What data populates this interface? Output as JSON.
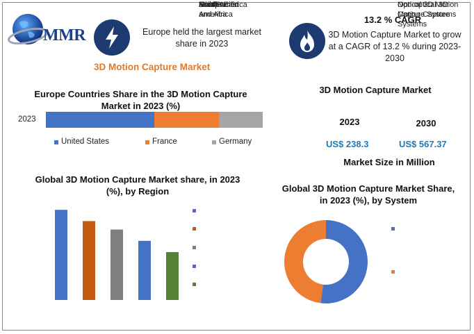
{
  "logo": {
    "text": "MMR"
  },
  "highlights": {
    "left_text": "Europe held the largest market share in 2023",
    "right_title": "13.2 % CAGR",
    "right_text": "3D Motion Capture Market to grow at a CAGR of 13.2 % during 2023-2030"
  },
  "market_title": "3D Motion Capture Market",
  "europe_chart": {
    "title": "Europe Countries Share in the  3D Motion Capture Market in 2023 (%)",
    "year_label": "2023"
  },
  "market_size": {
    "title": "3D Motion Capture Market",
    "year1": "2023",
    "year2": "2030",
    "value1": "US$ 238.3",
    "value2": "US$ 567.37",
    "caption": "Market Size in Million"
  },
  "region_chart": {
    "title": "Global 3D Motion Capture Market share, in 2023 (%), by Region"
  },
  "system_chart": {
    "title": "Global 3D Motion Capture Market Share, in 2023 (%), by System"
  },
  "colors": {
    "blue": "#4472c4",
    "orange": "#ed7d31",
    "gray": "#a5a5a5",
    "green": "#548235",
    "darkorange": "#c55a11",
    "darkgray": "#7f7f7f",
    "navy": "#1d3b70"
  },
  "chart_data": [
    {
      "type": "bar",
      "orientation": "horizontal-stacked",
      "categories": [
        "2023"
      ],
      "series": [
        {
          "name": "United States",
          "values": [
            50
          ],
          "color": "#4472c4"
        },
        {
          "name": "France",
          "values": [
            30
          ],
          "color": "#ed7d31"
        },
        {
          "name": "Germany",
          "values": [
            20
          ],
          "color": "#a5a5a5"
        }
      ],
      "legend": "bottom"
    },
    {
      "type": "bar",
      "series": [
        {
          "name": "Europe",
          "values": [
            32
          ],
          "color": "#4472c4"
        },
        {
          "name": "North America",
          "values": [
            28
          ],
          "color": "#c55a11"
        },
        {
          "name": "Asia Pacific",
          "values": [
            25
          ],
          "color": "#7f7f7f"
        },
        {
          "name": "South America",
          "values": [
            21
          ],
          "color": "#4472c4"
        },
        {
          "name": "Middle East and Africa",
          "values": [
            17
          ],
          "color": "#548235"
        }
      ],
      "ylim": [
        0,
        35
      ],
      "legend": "right"
    },
    {
      "type": "pie",
      "donut": true,
      "series": [
        {
          "name": "Optical 3D Motion Capture Systems",
          "value": 52,
          "color": "#4472c4"
        },
        {
          "name": "Non-optical 3D Motion Capture Systems",
          "value": 48,
          "color": "#ed7d31"
        }
      ],
      "legend": "right"
    }
  ]
}
